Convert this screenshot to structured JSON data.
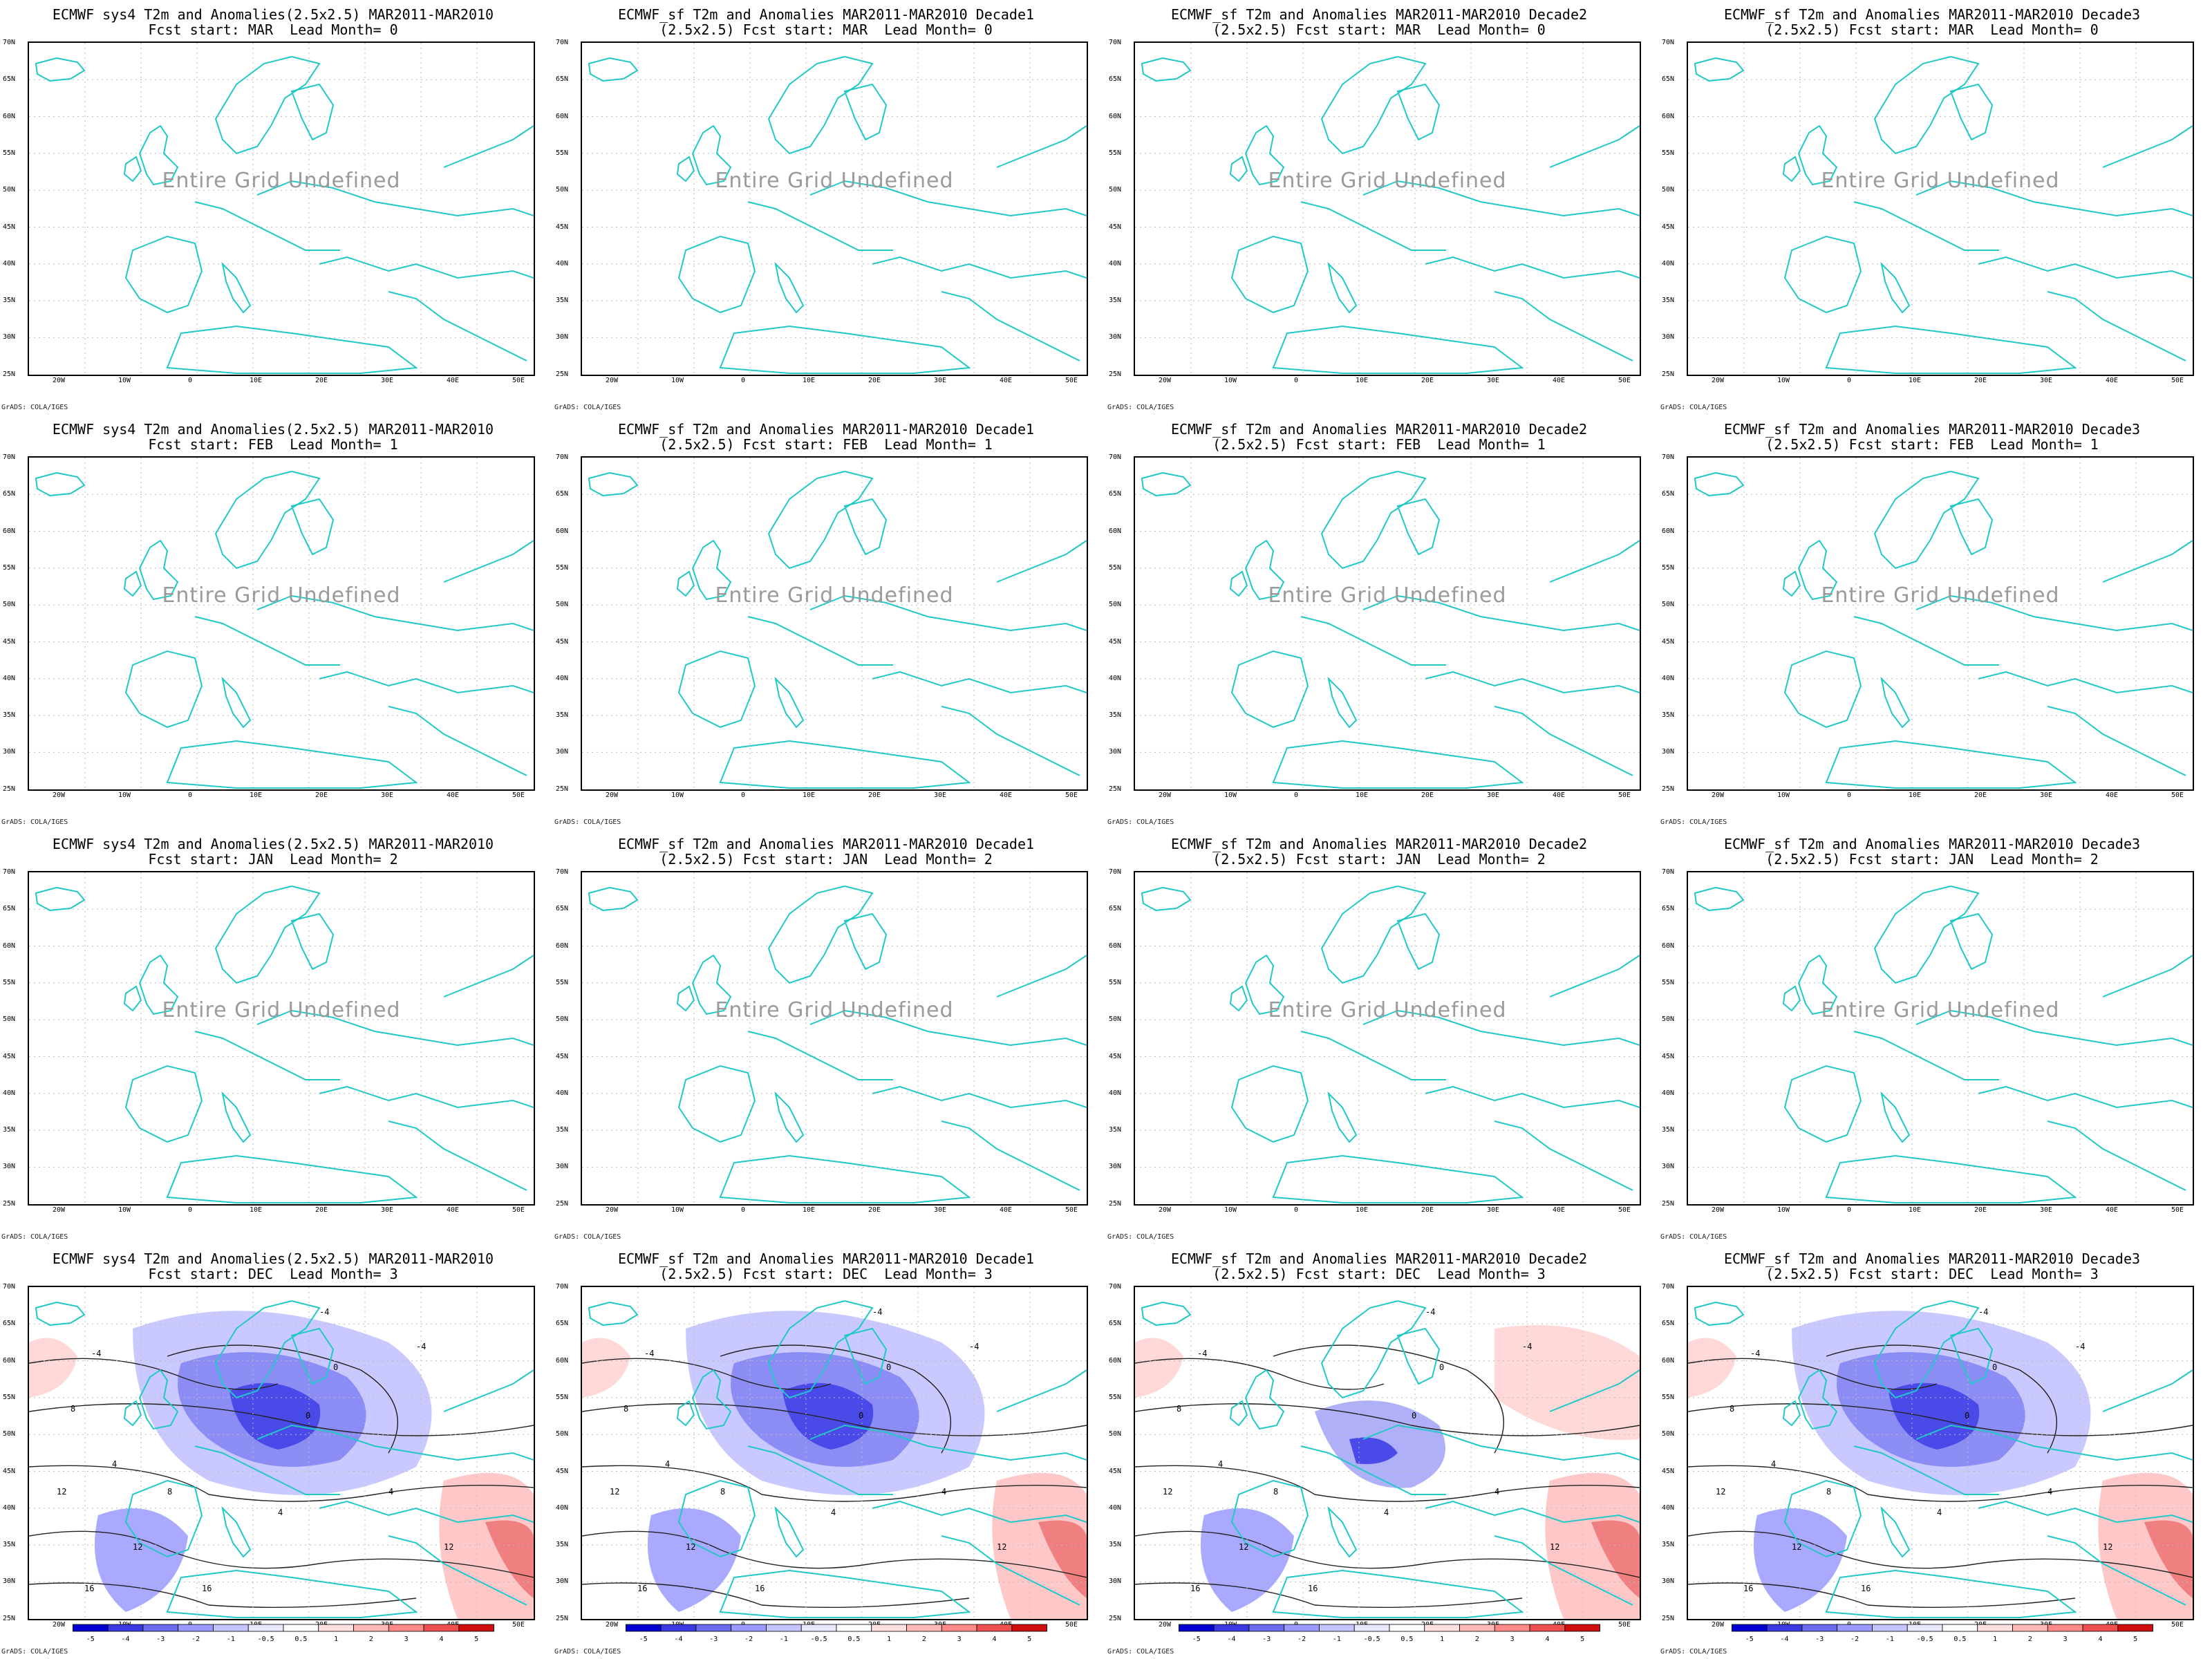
{
  "colors": {
    "coast": "#20c8c8",
    "neg_strong": "#1010d0",
    "neg_light": "#d8d8ff",
    "pos_strong": "#e83030",
    "pos_light": "#ffd8d8",
    "contour": "#222222"
  },
  "latitude_labels": [
    "70N",
    "65N",
    "60N",
    "55N",
    "50N",
    "45N",
    "40N",
    "35N",
    "30N",
    "25N"
  ],
  "longitude_labels": [
    "20W",
    "10W",
    "0",
    "10E",
    "20E",
    "30E",
    "40E",
    "50E"
  ],
  "credit": "GrADS: COLA/IGES",
  "undefined_text": "Entire Grid Undefined",
  "colorbar_labels": [
    "-5",
    "-4",
    "-3",
    "-2",
    "-1",
    "-0.5",
    "0.5",
    "1",
    "2",
    "3",
    "4",
    "5"
  ],
  "contour_labels": [
    "-4",
    "-4",
    "0",
    "4",
    "4",
    "8",
    "8",
    "12",
    "12",
    "16",
    "16",
    "12",
    "4",
    "0",
    "-4"
  ],
  "panels": [
    {
      "title1": "ECMWF sys4 T2m and Anomalies(2.5x2.5) MAR2011-MAR2010",
      "title2": "Fcst start: MAR  Lead Month= 0",
      "undefined": true
    },
    {
      "title1": "ECMWF_sf T2m and Anomalies MAR2011-MAR2010 Decade1",
      "title2": "(2.5x2.5) Fcst start: MAR  Lead Month= 0",
      "undefined": true
    },
    {
      "title1": "ECMWF_sf T2m and Anomalies MAR2011-MAR2010 Decade2",
      "title2": "(2.5x2.5) Fcst start: MAR  Lead Month= 0",
      "undefined": true
    },
    {
      "title1": "ECMWF_sf T2m and Anomalies MAR2011-MAR2010 Decade3",
      "title2": "(2.5x2.5) Fcst start: MAR  Lead Month= 0",
      "undefined": true
    },
    {
      "title1": "ECMWF sys4 T2m and Anomalies(2.5x2.5) MAR2011-MAR2010",
      "title2": "Fcst start: FEB  Lead Month= 1",
      "undefined": true
    },
    {
      "title1": "ECMWF_sf T2m and Anomalies MAR2011-MAR2010 Decade1",
      "title2": "(2.5x2.5) Fcst start: FEB  Lead Month= 1",
      "undefined": true
    },
    {
      "title1": "ECMWF_sf T2m and Anomalies MAR2011-MAR2010 Decade2",
      "title2": "(2.5x2.5) Fcst start: FEB  Lead Month= 1",
      "undefined": true
    },
    {
      "title1": "ECMWF_sf T2m and Anomalies MAR2011-MAR2010 Decade3",
      "title2": "(2.5x2.5) Fcst start: FEB  Lead Month= 1",
      "undefined": true
    },
    {
      "title1": "ECMWF sys4 T2m and Anomalies(2.5x2.5) MAR2011-MAR2010",
      "title2": "Fcst start: JAN  Lead Month= 2",
      "undefined": true
    },
    {
      "title1": "ECMWF_sf T2m and Anomalies MAR2011-MAR2010 Decade1",
      "title2": "(2.5x2.5) Fcst start: JAN  Lead Month= 2",
      "undefined": true
    },
    {
      "title1": "ECMWF_sf T2m and Anomalies MAR2011-MAR2010 Decade2",
      "title2": "(2.5x2.5) Fcst start: JAN  Lead Month= 2",
      "undefined": true
    },
    {
      "title1": "ECMWF_sf T2m and Anomalies MAR2011-MAR2010 Decade3",
      "title2": "(2.5x2.5) Fcst start: JAN  Lead Month= 2",
      "undefined": true
    },
    {
      "title1": "ECMWF sys4 T2m and Anomalies(2.5x2.5) MAR2011-MAR2010",
      "title2": "Fcst start: DEC  Lead Month= 3",
      "undefined": false
    },
    {
      "title1": "ECMWF_sf T2m and Anomalies MAR2011-MAR2010 Decade1",
      "title2": "(2.5x2.5) Fcst start: DEC  Lead Month= 3",
      "undefined": false
    },
    {
      "title1": "ECMWF_sf T2m and Anomalies MAR2011-MAR2010 Decade2",
      "title2": "(2.5x2.5) Fcst start: DEC  Lead Month= 3",
      "undefined": false
    },
    {
      "title1": "ECMWF_sf T2m and Anomalies MAR2011-MAR2010 Decade3",
      "title2": "(2.5x2.5) Fcst start: DEC  Lead Month= 3",
      "undefined": false
    }
  ]
}
